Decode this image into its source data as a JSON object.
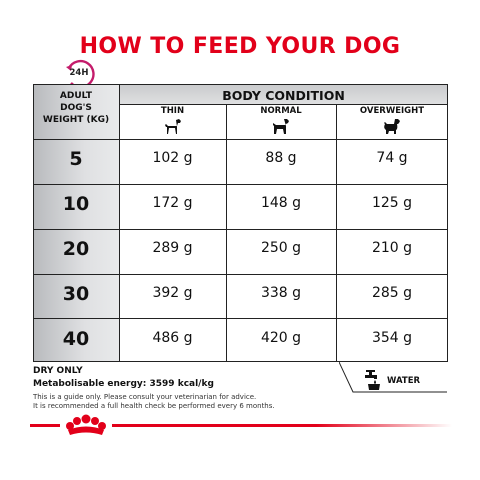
{
  "title": "HOW TO FEED YOUR DOG",
  "clock_label": "24H",
  "table": {
    "header": "BODY CONDITION",
    "weight_header_lines": [
      "ADULT",
      "DOG'S",
      "WEIGHT (KG)"
    ],
    "columns": [
      "THIN",
      "NORMAL",
      "OVERWEIGHT"
    ],
    "rows": [
      {
        "weight": "5",
        "values": [
          "102 g",
          "88 g",
          "74 g"
        ]
      },
      {
        "weight": "10",
        "values": [
          "172 g",
          "148 g",
          "125 g"
        ]
      },
      {
        "weight": "20",
        "values": [
          "289 g",
          "250 g",
          "210 g"
        ]
      },
      {
        "weight": "30",
        "values": [
          "392 g",
          "338 g",
          "285 g"
        ]
      },
      {
        "weight": "40",
        "values": [
          "486 g",
          "420 g",
          "354 g"
        ]
      }
    ]
  },
  "footer": {
    "dry_only": "DRY ONLY",
    "energy": "Metabolisable energy: 3599 kcal/kg",
    "guide_note": "This is a guide only. Please consult your veterinarian for advice.",
    "check_note": "It is recommended a full health check be performed every 6 months.",
    "water_label": "WATER"
  },
  "colors": {
    "accent": "#e2001a",
    "clock_ring": "#c41c6b"
  },
  "icons": {
    "clock": "clock-24h-icon",
    "thin_dog": "thin-dog-icon",
    "normal_dog": "normal-dog-icon",
    "overweight_dog": "overweight-dog-icon",
    "water": "water-tap-icon",
    "logo": "royal-canin-crown-logo"
  }
}
